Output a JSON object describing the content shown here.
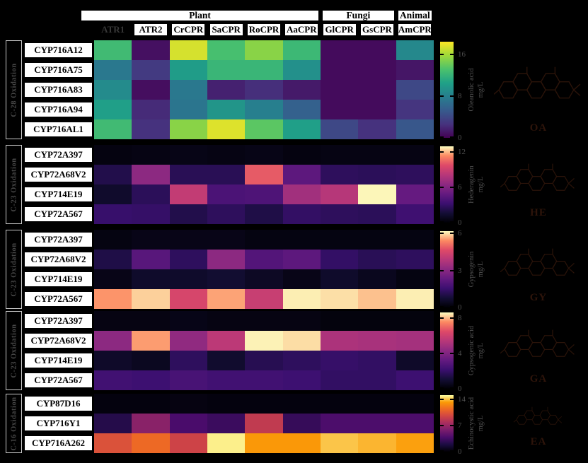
{
  "figure_type": "CYP-CPR pairing triterpenoid titer heatmap figure",
  "colors": {
    "background": "#000000",
    "box_fill": "#ffffff",
    "box_border": "#000000",
    "dim_text": "#4f4f4f",
    "highlighted_header_text": "#383838",
    "structure_line": "#2a1309"
  },
  "header": {
    "groups": [
      {
        "label": "Plant",
        "span": 6
      },
      {
        "label": "Fungi",
        "span": 2
      },
      {
        "label": "Animal",
        "span": 1
      }
    ],
    "columns": [
      {
        "label": "ATR1",
        "highlighted": true
      },
      {
        "label": "ATR2"
      },
      {
        "label": "CrCPR"
      },
      {
        "label": "SaCPR"
      },
      {
        "label": "RoCPR"
      },
      {
        "label": "AaCPR"
      },
      {
        "label": "GlCPR"
      },
      {
        "label": "GsCPR"
      },
      {
        "label": "AmCPR"
      }
    ]
  },
  "chart_data": [
    {
      "type": "heatmap",
      "side_label": "C-28 Oxidation",
      "colormap": "viridis",
      "product": "Oleanolic acid",
      "unit": "mg/L",
      "abbrev": "OA",
      "colorbar_ticks": [
        0,
        8,
        16
      ],
      "vmax": 18.4,
      "x": [
        "ATR1",
        "ATR2",
        "CrCPR",
        "SaCPR",
        "RoCPR",
        "AaCPR",
        "GlCPR",
        "GsCPR",
        "AmCPR"
      ],
      "y": [
        "CYP716A12",
        "CYP716A75",
        "CYP716A83",
        "CYP716A94",
        "CYP716AL1"
      ],
      "values": [
        [
          12.5,
          0.8,
          17.3,
          12.9,
          15.1,
          12.3,
          0.5,
          0.5,
          8.6
        ],
        [
          7.4,
          3.1,
          10.1,
          12.1,
          12.1,
          9.2,
          0.5,
          0.5,
          1.1
        ],
        [
          8.8,
          0.7,
          7.4,
          1.7,
          2.4,
          1.3,
          0.5,
          0.5,
          4.0
        ],
        [
          10.3,
          2.2,
          7.2,
          9.6,
          7.9,
          5.7,
          0.5,
          0.5,
          2.8
        ],
        [
          12.5,
          2.6,
          15.1,
          17.5,
          13.6,
          10.3,
          4.0,
          2.6,
          5.0
        ]
      ]
    },
    {
      "type": "heatmap",
      "side_label": "C-23 Oxidation",
      "colormap": "magma",
      "product": "Hederagenin",
      "unit": "mg/L",
      "abbrev": "HE",
      "colorbar_ticks": [
        0,
        6,
        12
      ],
      "vmax": 13.0,
      "x": [
        "ATR1",
        "ATR2",
        "CrCPR",
        "SaCPR",
        "RoCPR",
        "AaCPR",
        "GlCPR",
        "GsCPR",
        "AmCPR"
      ],
      "y": [
        "CYP72A397",
        "CYP72A68V2",
        "CYP714E19",
        "CYP72A567"
      ],
      "values": [
        [
          0.4,
          0.5,
          0.6,
          0.5,
          0.6,
          0.4,
          0.5,
          0.5,
          0.5
        ],
        [
          2.2,
          6.5,
          2.5,
          2.5,
          10.2,
          4.6,
          2.7,
          2.6,
          2.7
        ],
        [
          1.3,
          2.6,
          8.6,
          3.9,
          4.0,
          7.3,
          8.1,
          12.9,
          4.9
        ],
        [
          3.1,
          3.0,
          2.2,
          2.7,
          2.1,
          2.9,
          2.7,
          2.6,
          3.4
        ]
      ]
    },
    {
      "type": "heatmap",
      "side_label": "C-23 Oxidation",
      "colormap": "magma",
      "product": "Gypsogenin",
      "unit": "mg/L",
      "abbrev": "GY",
      "colorbar_ticks": [
        0,
        3,
        6
      ],
      "vmax": 6.2,
      "x": [
        "ATR1",
        "ATR2",
        "CrCPR",
        "SaCPR",
        "RoCPR",
        "AaCPR",
        "GlCPR",
        "GsCPR",
        "AmCPR"
      ],
      "y": [
        "CYP72A397",
        "CYP72A68V2",
        "CYP714E19",
        "CYP72A567"
      ],
      "values": [
        [
          0.2,
          0.3,
          0.3,
          0.3,
          0.2,
          0.2,
          0.2,
          0.2,
          0.2
        ],
        [
          1.0,
          2.1,
          1.3,
          3.1,
          2.0,
          2.2,
          1.4,
          1.2,
          1.3
        ],
        [
          0.3,
          0.6,
          0.6,
          0.7,
          0.5,
          0.3,
          0.6,
          0.4,
          0.2
        ],
        [
          5.5,
          5.9,
          4.5,
          5.6,
          4.2,
          6.1,
          6.0,
          5.8,
          6.1
        ]
      ]
    },
    {
      "type": "heatmap",
      "side_label": "C-23 Oxidation",
      "colormap": "magma",
      "product": "Gypsogenic acid",
      "unit": "mg/L",
      "abbrev": "GA",
      "colorbar_ticks": [
        0,
        4,
        8
      ],
      "vmax": 8.6,
      "x": [
        "ATR1",
        "ATR2",
        "CrCPR",
        "SaCPR",
        "RoCPR",
        "AaCPR",
        "GlCPR",
        "GsCPR",
        "AmCPR"
      ],
      "y": [
        "CYP72A397",
        "CYP72A68V2",
        "CYP714E19",
        "CYP72A567"
      ],
      "values": [
        [
          0.3,
          0.3,
          0.4,
          0.3,
          0.3,
          0.3,
          0.2,
          0.2,
          0.2
        ],
        [
          4.3,
          7.7,
          4.4,
          5.5,
          8.5,
          8.3,
          5.1,
          5.0,
          4.9
        ],
        [
          0.8,
          0.6,
          1.8,
          0.9,
          1.6,
          1.8,
          2.0,
          1.9,
          0.8
        ],
        [
          2.3,
          2.2,
          2.5,
          2.3,
          2.3,
          2.2,
          1.9,
          1.9,
          2.2
        ]
      ]
    },
    {
      "type": "heatmap",
      "side_label": "C-16 Oxidation",
      "colormap": "inferno",
      "product": "Echinocystic acid",
      "unit": "mg/L",
      "abbrev": "EA",
      "colorbar_ticks": [
        0,
        7,
        14
      ],
      "vmax": 15.2,
      "x": [
        "ATR1",
        "ATR2",
        "CrCPR",
        "SaCPR",
        "RoCPR",
        "AaCPR",
        "GlCPR",
        "GsCPR",
        "AmCPR"
      ],
      "y": [
        "CYP87D16",
        "CYP716Y1",
        "CYP716A262"
      ],
      "values": [
        [
          0.3,
          0.3,
          0.4,
          0.3,
          0.3,
          0.3,
          0.3,
          0.3,
          0.3
        ],
        [
          2.3,
          6.4,
          3.8,
          3.2,
          8.8,
          3.0,
          3.9,
          3.9,
          3.9
        ],
        [
          10.2,
          11.4,
          9.4,
          14.9,
          13.2,
          13.2,
          14.1,
          13.8,
          13.4
        ]
      ]
    }
  ]
}
